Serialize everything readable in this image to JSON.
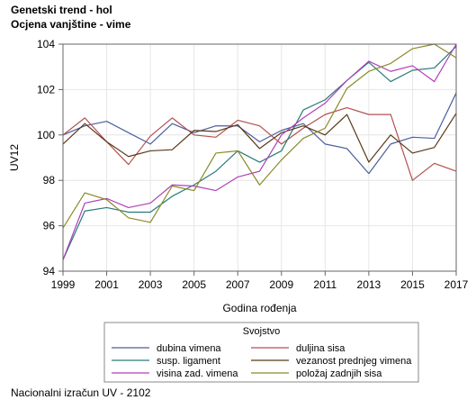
{
  "chart_data": {
    "type": "line",
    "title": "Genetski trend - hol",
    "subtitle": "Ocjena vanjštine - vime",
    "xlabel": "Godina rođenja",
    "ylabel": "UV12",
    "xlim": [
      1999,
      2017
    ],
    "ylim": [
      94,
      104
    ],
    "x_ticks": [
      "1999",
      "2001",
      "2003",
      "2005",
      "2007",
      "2009",
      "2011",
      "2013",
      "2015",
      "2017"
    ],
    "y_ticks": [
      "94",
      "96",
      "98",
      "100",
      "102",
      "104"
    ],
    "grid": true,
    "legend_title": "Svojstvo",
    "legend_position": "bottom",
    "x": [
      1999,
      2000,
      2001,
      2002,
      2003,
      2004,
      2005,
      2006,
      2007,
      2008,
      2009,
      2010,
      2011,
      2012,
      2013,
      2014,
      2015,
      2016,
      2017
    ],
    "series": [
      {
        "name": "dubina vimena",
        "color": "#4a5f9e",
        "values": [
          100.0,
          100.4,
          100.6,
          100.1,
          99.6,
          100.5,
          100.1,
          100.4,
          100.4,
          99.7,
          100.2,
          100.5,
          99.6,
          99.4,
          98.3,
          99.6,
          99.9,
          99.85,
          101.85
        ]
      },
      {
        "name": "duljina sisa",
        "color": "#b05050",
        "values": [
          100.0,
          100.75,
          99.7,
          98.7,
          99.95,
          100.75,
          100.0,
          99.9,
          100.65,
          100.4,
          99.6,
          100.3,
          100.9,
          101.2,
          100.9,
          100.9,
          98.0,
          98.75,
          98.4
        ]
      },
      {
        "name": "susp. ligament",
        "color": "#2a7a7a",
        "values": [
          94.5,
          96.65,
          96.8,
          96.6,
          96.6,
          97.3,
          97.8,
          98.4,
          99.3,
          98.8,
          99.3,
          101.1,
          101.55,
          102.4,
          103.2,
          102.35,
          102.85,
          102.95,
          103.9
        ]
      },
      {
        "name": "vezanost prednjeg vimena",
        "color": "#5a3a1a",
        "values": [
          99.6,
          100.5,
          99.7,
          99.05,
          99.3,
          99.35,
          100.2,
          100.15,
          100.45,
          99.4,
          100.1,
          100.4,
          100.0,
          100.9,
          98.8,
          100.0,
          99.2,
          99.45,
          100.95
        ]
      },
      {
        "name": "visina zad. vimena",
        "color": "#b040b8",
        "values": [
          94.5,
          97.0,
          97.2,
          96.8,
          97.0,
          97.8,
          97.75,
          97.55,
          98.15,
          98.4,
          100.0,
          100.75,
          101.4,
          102.4,
          103.25,
          102.8,
          103.05,
          102.35,
          104.0
        ]
      },
      {
        "name": "položaj zadnjih sisa",
        "color": "#8a8a2a",
        "values": [
          95.9,
          97.45,
          97.15,
          96.35,
          96.15,
          97.75,
          97.55,
          99.2,
          99.3,
          97.8,
          98.9,
          99.85,
          100.3,
          102.05,
          102.8,
          103.15,
          103.8,
          104.0,
          103.4
        ]
      }
    ]
  },
  "footnote": "Nacionalni izračun UV - 2102"
}
